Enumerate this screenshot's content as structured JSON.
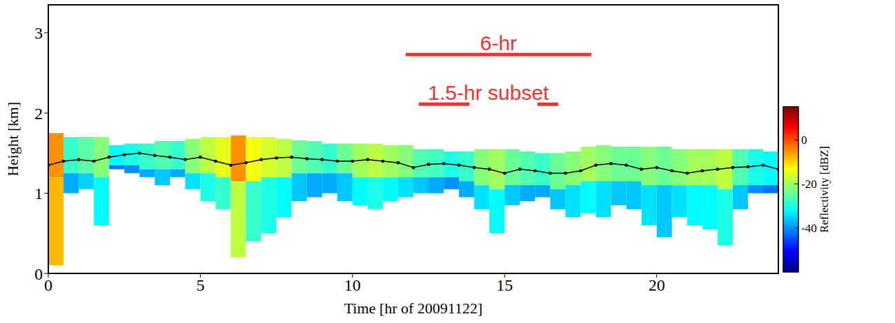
{
  "chart_data": {
    "type": "heatmap",
    "xlabel": "Time [hr of 20091122]",
    "ylabel": "Height [km]",
    "xlim": [
      0,
      24
    ],
    "xticks": [
      0,
      5,
      10,
      15,
      20
    ],
    "ylim": [
      0,
      3.35
    ],
    "yticks": [
      0,
      1,
      2,
      3
    ],
    "grid": false,
    "tick_labels": true,
    "cells": {
      "x": [
        0,
        0.5,
        1,
        1.5,
        2,
        2.5,
        3,
        3.5,
        4,
        4.5,
        5,
        5.5,
        6,
        6.5,
        7,
        7.5,
        8,
        8.5,
        9,
        9.5,
        10,
        10.5,
        11,
        11.5,
        12,
        12.5,
        13,
        13.5,
        14,
        14.5,
        15,
        15.5,
        16,
        16.5,
        17,
        17.5,
        18,
        18.5,
        19,
        19.5,
        20,
        20.5,
        21,
        21.5,
        22,
        22.5,
        23,
        23.5,
        24
      ],
      "top": [
        1.75,
        1.7,
        1.7,
        1.7,
        1.6,
        1.62,
        1.62,
        1.65,
        1.65,
        1.68,
        1.7,
        1.7,
        1.72,
        1.7,
        1.7,
        1.68,
        1.66,
        1.65,
        1.62,
        1.62,
        1.62,
        1.62,
        1.6,
        1.6,
        1.55,
        1.55,
        1.52,
        1.52,
        1.55,
        1.55,
        1.55,
        1.52,
        1.5,
        1.5,
        1.52,
        1.58,
        1.6,
        1.58,
        1.58,
        1.58,
        1.58,
        1.55,
        1.55,
        1.55,
        1.55,
        1.55,
        1.55,
        1.52
      ],
      "mid": [
        1.2,
        1.25,
        1.25,
        1.2,
        1.35,
        1.35,
        1.3,
        1.3,
        1.3,
        1.25,
        1.25,
        1.2,
        1.15,
        1.15,
        1.2,
        1.2,
        1.25,
        1.25,
        1.25,
        1.25,
        1.2,
        1.2,
        1.2,
        1.2,
        1.2,
        1.2,
        1.2,
        1.15,
        1.1,
        1.05,
        1.1,
        1.1,
        1.1,
        1.05,
        1.1,
        1.15,
        1.15,
        1.15,
        1.15,
        1.1,
        1.1,
        1.1,
        1.1,
        1.1,
        1.05,
        1.1,
        1.1,
        1.1
      ],
      "bottom": [
        0.1,
        1.0,
        1.05,
        0.6,
        1.3,
        1.25,
        1.2,
        1.1,
        1.2,
        1.05,
        0.9,
        0.8,
        0.2,
        0.4,
        0.5,
        0.7,
        0.9,
        0.95,
        1.0,
        0.9,
        0.85,
        0.8,
        0.9,
        0.95,
        1.0,
        1.0,
        1.05,
        0.95,
        0.8,
        0.5,
        0.85,
        0.9,
        0.95,
        0.8,
        0.7,
        0.75,
        0.7,
        0.85,
        0.8,
        0.6,
        0.45,
        0.7,
        0.6,
        0.55,
        0.35,
        0.8,
        1.0,
        1.0
      ],
      "upper_dbz": [
        -5,
        -28,
        -25,
        -22,
        -32,
        -30,
        -28,
        -26,
        -28,
        -22,
        -18,
        -15,
        -5,
        -14,
        -16,
        -18,
        -24,
        -26,
        -28,
        -24,
        -20,
        -18,
        -20,
        -22,
        -26,
        -27,
        -30,
        -28,
        -22,
        -20,
        -24,
        -26,
        -28,
        -24,
        -22,
        -20,
        -22,
        -24,
        -24,
        -22,
        -24,
        -22,
        -20,
        -20,
        -18,
        -26,
        -30,
        -32
      ],
      "lower_dbz": [
        -8,
        -38,
        -35,
        -32,
        -42,
        -40,
        -38,
        -36,
        -38,
        -34,
        -30,
        -28,
        -18,
        -28,
        -30,
        -32,
        -36,
        -38,
        -38,
        -36,
        -32,
        -30,
        -32,
        -34,
        -36,
        -38,
        -40,
        -38,
        -34,
        -32,
        -36,
        -38,
        -38,
        -36,
        -34,
        -32,
        -34,
        -36,
        -36,
        -34,
        -36,
        -34,
        -32,
        -32,
        -30,
        -36,
        -40,
        -42
      ]
    },
    "colorbar": {
      "label": "Reflectivity [dBZ]",
      "range": [
        -60,
        15
      ],
      "ticks": [
        -40,
        -20,
        0
      ]
    },
    "series": [
      {
        "color": "#000000",
        "marker": "dot",
        "line_style": "solid",
        "x": [
          0,
          0.5,
          1,
          1.5,
          2,
          2.5,
          3,
          3.5,
          4,
          4.5,
          5,
          5.5,
          6,
          6.5,
          7,
          7.5,
          8,
          8.5,
          9,
          9.5,
          10,
          10.5,
          11,
          11.5,
          12,
          12.5,
          13,
          13.5,
          14,
          14.5,
          15,
          15.5,
          16,
          16.5,
          17,
          17.5,
          18,
          18.5,
          19,
          19.5,
          20,
          20.5,
          21,
          21.5,
          22,
          22.5,
          23,
          23.5,
          24
        ],
        "values": [
          1.35,
          1.4,
          1.42,
          1.4,
          1.45,
          1.48,
          1.5,
          1.47,
          1.45,
          1.42,
          1.45,
          1.4,
          1.35,
          1.38,
          1.42,
          1.44,
          1.45,
          1.43,
          1.42,
          1.4,
          1.4,
          1.42,
          1.4,
          1.38,
          1.32,
          1.36,
          1.37,
          1.35,
          1.32,
          1.3,
          1.25,
          1.3,
          1.28,
          1.25,
          1.25,
          1.28,
          1.35,
          1.37,
          1.35,
          1.3,
          1.32,
          1.28,
          1.25,
          1.28,
          1.3,
          1.32,
          1.33,
          1.35,
          1.3
        ]
      }
    ],
    "annotations": [
      {
        "text": "6-hr",
        "color": "#ee3333",
        "y": 2.73,
        "segments": [
          [
            11.75,
            17.85
          ]
        ]
      },
      {
        "text": "1.5-hr subset",
        "color": "#ee3333",
        "y": 2.11,
        "segments": [
          [
            12.18,
            13.85
          ],
          [
            16.08,
            16.76
          ]
        ]
      }
    ]
  }
}
